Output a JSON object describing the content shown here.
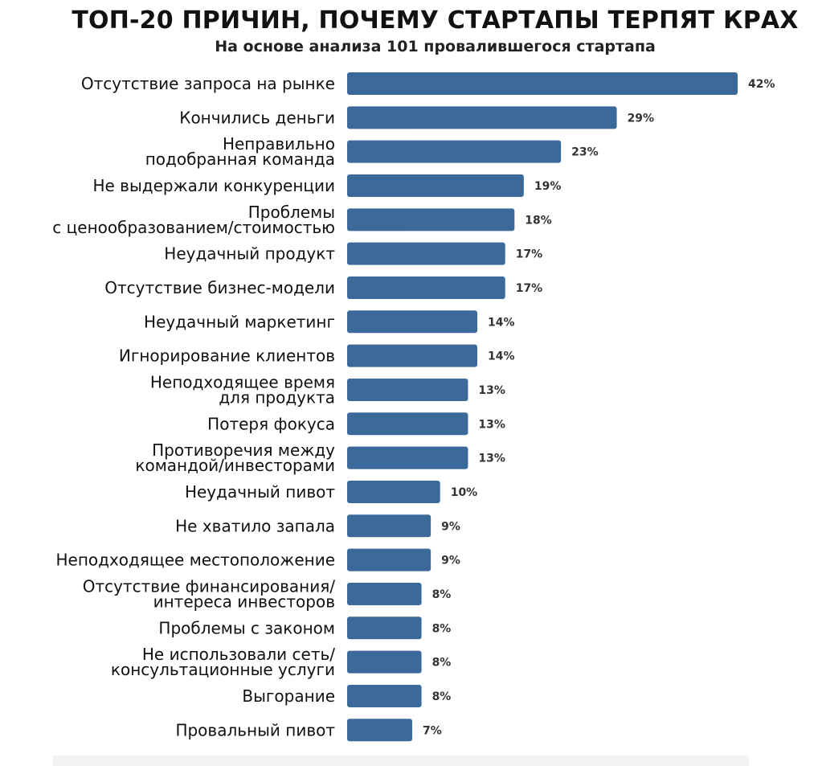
{
  "title": "ТОП-20 ПРИЧИН, ПОЧЕМУ СТАРТАПЫ ТЕРПЯТ КРАХ",
  "subtitle": "На основе анализа 101 провалившегося стартапа",
  "colors": {
    "bar": "#3b6a9a",
    "panel": "#f3f3f3"
  },
  "chart_data": {
    "type": "bar",
    "orientation": "horizontal",
    "title": "ТОП-20 ПРИЧИН, ПОЧЕМУ СТАРТАПЫ ТЕРПЯТ КРАХ",
    "subtitle": "На основе анализа 101 провалившегося стартапа",
    "categories": [
      "Отсутствие запроса на рынке",
      "Кончились деньги",
      "Неправильно\nподобранная команда",
      "Не выдержали конкуренции",
      "Проблемы\nс ценообразованием/стоимостью",
      "Неудачный продукт",
      "Отсутствие бизнес-модели",
      "Неудачный маркетинг",
      "Игнорирование клиентов",
      "Неподходящее время\nдля продукта",
      "Потеря фокуса",
      "Противоречия между\nкомандой/инвесторами",
      "Неудачный пивот",
      "Не хватило запала",
      "Неподходящее местоположение",
      "Отсутствие финансирования/\nинтереса инвесторов",
      "Проблемы с законом",
      "Не использовали сеть/\nконсультационные услуги",
      "Выгорание",
      "Провальный пивот"
    ],
    "values": [
      42,
      29,
      23,
      19,
      18,
      17,
      17,
      14,
      14,
      13,
      13,
      13,
      10,
      9,
      9,
      8,
      8,
      8,
      8,
      7
    ],
    "value_labels": [
      "42%",
      "29%",
      "23%",
      "19%",
      "18%",
      "17%",
      "17%",
      "14%",
      "14%",
      "13%",
      "13%",
      "13%",
      "10%",
      "9%",
      "9%",
      "8%",
      "8%",
      "8%",
      "8%",
      "7%"
    ],
    "unit": "%",
    "xlim": [
      0,
      42
    ],
    "grid": false,
    "legend": "none",
    "xlabel": "",
    "ylabel": ""
  }
}
